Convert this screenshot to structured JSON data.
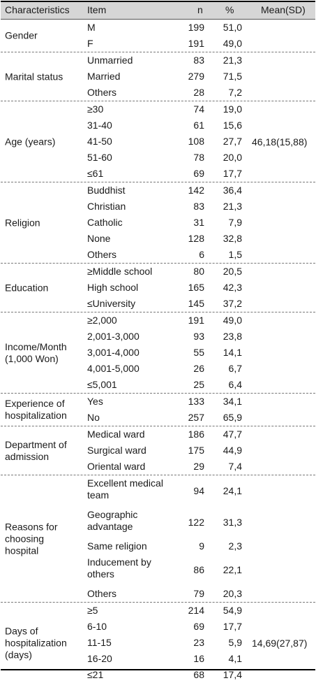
{
  "headers": {
    "characteristics": "Characteristics",
    "item": "Item",
    "n": "n",
    "pct": "%",
    "mean": "Mean(SD)"
  },
  "groups": [
    {
      "name": "Gender",
      "mean": "",
      "rows": [
        {
          "item": "M",
          "n": "199",
          "pct": "51,0"
        },
        {
          "item": "F",
          "n": "191",
          "pct": "49,0"
        }
      ]
    },
    {
      "name": "Marital status",
      "mean": "",
      "rows": [
        {
          "item": "Unmarried",
          "n": "83",
          "pct": "21,3"
        },
        {
          "item": "Married",
          "n": "279",
          "pct": "71,5"
        },
        {
          "item": "Others",
          "n": "28",
          "pct": "7,2"
        }
      ]
    },
    {
      "name": "Age (years)",
      "mean": "46,18(15,88)",
      "rows": [
        {
          "item": "≥30",
          "n": "74",
          "pct": "19,0"
        },
        {
          "item": "31-40",
          "n": "61",
          "pct": "15,6"
        },
        {
          "item": "41-50",
          "n": "108",
          "pct": "27,7"
        },
        {
          "item": "51-60",
          "n": "78",
          "pct": "20,0"
        },
        {
          "item": "≤61",
          "n": "69",
          "pct": "17,7"
        }
      ]
    },
    {
      "name": "Religion",
      "mean": "",
      "rows": [
        {
          "item": "Buddhist",
          "n": "142",
          "pct": "36,4"
        },
        {
          "item": "Christian",
          "n": "83",
          "pct": "21,3"
        },
        {
          "item": "Catholic",
          "n": "31",
          "pct": "7,9"
        },
        {
          "item": "None",
          "n": "128",
          "pct": "32,8"
        },
        {
          "item": "Others",
          "n": "6",
          "pct": "1,5"
        }
      ]
    },
    {
      "name": "Education",
      "mean": "",
      "rows": [
        {
          "item": "≥Middle school",
          "n": "80",
          "pct": "20,5"
        },
        {
          "item": "High school",
          "n": "165",
          "pct": "42,3"
        },
        {
          "item": "≤University",
          "n": "145",
          "pct": "37,2"
        }
      ]
    },
    {
      "name": "Income/Month\n(1,000 Won)",
      "mean": "",
      "rows": [
        {
          "item": "≥2,000",
          "n": "191",
          "pct": "49,0"
        },
        {
          "item": "2,001-3,000",
          "n": "93",
          "pct": "23,8"
        },
        {
          "item": "3,001-4,000",
          "n": "55",
          "pct": "14,1"
        },
        {
          "item": "4,001-5,000",
          "n": "26",
          "pct": "6,7"
        },
        {
          "item": "≤5,001",
          "n": "25",
          "pct": "6,4"
        }
      ]
    },
    {
      "name": "Experience of\nhospitalization",
      "mean": "",
      "rows": [
        {
          "item": "Yes",
          "n": "133",
          "pct": "34,1"
        },
        {
          "item": "No",
          "n": "257",
          "pct": "65,9"
        }
      ]
    },
    {
      "name": "Department of\nadmission",
      "mean": "",
      "rows": [
        {
          "item": "Medical ward",
          "n": "186",
          "pct": "47,7"
        },
        {
          "item": "Surgical ward",
          "n": "175",
          "pct": "44,9"
        },
        {
          "item": "Oriental ward",
          "n": "29",
          "pct": "7,4"
        }
      ]
    },
    {
      "name": "Reasons for\n choosing\nhospital",
      "mean": "",
      "rows": [
        {
          "item": "Excellent medical team",
          "n": "94",
          "pct": "24,1",
          "tall": true
        },
        {
          "item": "Geographic advantage",
          "n": "122",
          "pct": "31,3",
          "tall": true
        },
        {
          "item": "Same religion",
          "n": "9",
          "pct": "2,3"
        },
        {
          "item": "Inducement by others",
          "n": "86",
          "pct": "22,1",
          "tall": true
        },
        {
          "item": "Others",
          "n": "79",
          "pct": "20,3"
        }
      ]
    },
    {
      "name": "Days of\nhospitalization\n(days)",
      "mean": "14,69(27,87)",
      "rows": [
        {
          "item": "≥5",
          "n": "214",
          "pct": "54,9"
        },
        {
          "item": "6-10",
          "n": "69",
          "pct": "17,7"
        },
        {
          "item": "11-15",
          "n": "23",
          "pct": "5,9"
        },
        {
          "item": "16-20",
          "n": "16",
          "pct": "4,1"
        },
        {
          "item": "≤21",
          "n": "68",
          "pct": "17,4"
        }
      ]
    }
  ]
}
